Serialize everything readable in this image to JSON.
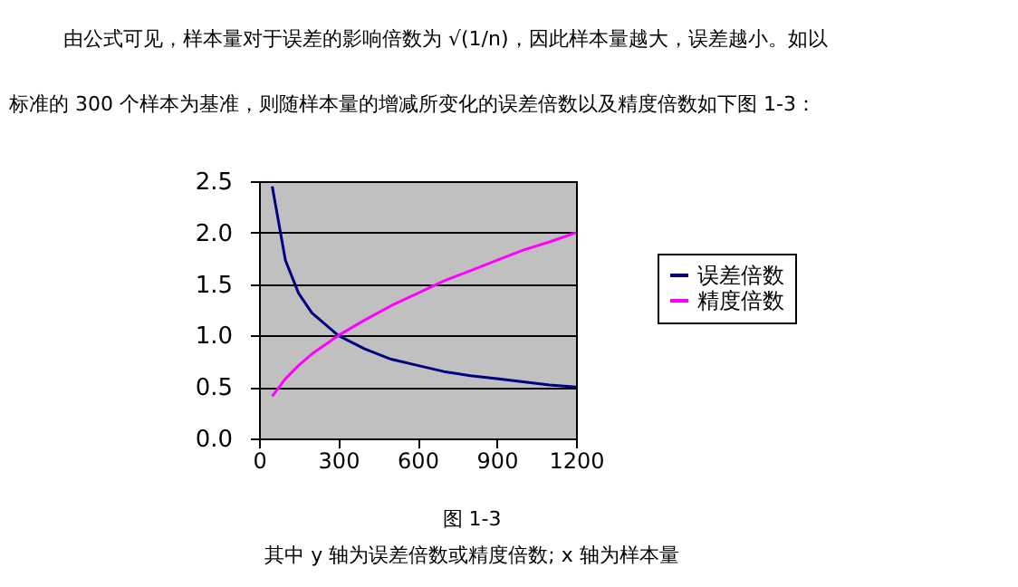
{
  "chart_data": {
    "type": "line",
    "title": "图 1-3",
    "annotations": [
      "由公式可见，样本量对于误差的影响倍数为 √(1/n)，因此样本量越大，误差越小。如以",
      "标准的 300 个样本为基准，则随样本量的增减所变化的误差倍数以及精度倍数如下图 1-3：",
      "其中 y 轴为误差倍数或精度倍数; x 轴为样本量"
    ],
    "x": [
      50,
      100,
      150,
      200,
      300,
      400,
      500,
      600,
      700,
      800,
      900,
      1000,
      1100,
      1200
    ],
    "series": [
      {
        "name": "误差倍数",
        "color": "#000080",
        "values": [
          2.45,
          1.73,
          1.41,
          1.22,
          1.0,
          0.87,
          0.77,
          0.71,
          0.65,
          0.61,
          0.58,
          0.55,
          0.52,
          0.5
        ]
      },
      {
        "name": "精度倍数",
        "color": "#ff00ff",
        "values": [
          0.41,
          0.58,
          0.71,
          0.82,
          1.0,
          1.15,
          1.29,
          1.41,
          1.53,
          1.63,
          1.73,
          1.83,
          1.91,
          2.0
        ]
      }
    ],
    "xlim": [
      0,
      1200
    ],
    "xticks": [
      0,
      300,
      600,
      900,
      1200
    ],
    "ylim": [
      0,
      2.5
    ],
    "yticks": [
      {
        "value": 0,
        "label": "0.0"
      },
      {
        "value": 0.5,
        "label": "0.5"
      },
      {
        "value": 1,
        "label": "1.0"
      },
      {
        "value": 1.5,
        "label": "1.5"
      },
      {
        "value": 2,
        "label": "2.0"
      },
      {
        "value": 2.5,
        "label": "2.5"
      }
    ],
    "grid": "y",
    "legend": "right",
    "marker": "none",
    "line_style": "solid"
  }
}
